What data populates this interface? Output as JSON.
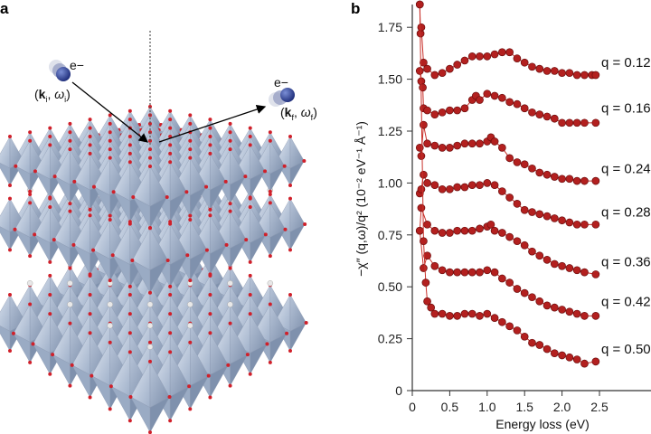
{
  "panel_a": {
    "label": "a",
    "incident": {
      "particle": "e−",
      "k": "k",
      "k_sub": "i",
      "w": "ω",
      "w_sub": "i"
    },
    "scattered": {
      "particle": "e−",
      "k": "k",
      "k_sub": "f",
      "w": "ω",
      "w_sub": "f"
    },
    "colors": {
      "octahedron": "#b9c6da",
      "oxygen": "#d0202a",
      "ion": "#e8e8e8",
      "electron": "#283a8c"
    }
  },
  "panel_b": {
    "label": "b"
  },
  "chart_data": {
    "type": "scatter",
    "xlabel": "Energy loss (eV)",
    "ylabel": "−χ″ (q,ω)/q² (10⁻² eV⁻¹ Å⁻¹)",
    "xlim": [
      0,
      2.5
    ],
    "ylim": [
      0,
      1.86
    ],
    "xticks": [
      "0",
      "0.5",
      "1.0",
      "1.5",
      "2.0",
      "2.5"
    ],
    "xtick_values": [
      0,
      0.5,
      1.0,
      1.5,
      2.0,
      2.5
    ],
    "yticks": [
      "0",
      "0.25",
      "0.50",
      "0.75",
      "1.00",
      "1.25",
      "1.50",
      "1.75"
    ],
    "ytick_values": [
      0,
      0.25,
      0.5,
      0.75,
      1.0,
      1.25,
      1.5,
      1.75
    ],
    "marker_color": "#b3201f",
    "line_color": "#c8302a",
    "series": [
      {
        "name": "q = 0.12",
        "label_y": 1.58,
        "points": [
          [
            0.1,
            1.86
          ],
          [
            0.11,
            1.72
          ],
          [
            0.12,
            1.75
          ],
          [
            0.15,
            1.58
          ],
          [
            0.2,
            1.55
          ],
          [
            0.3,
            1.52
          ],
          [
            0.4,
            1.53
          ],
          [
            0.5,
            1.55
          ],
          [
            0.6,
            1.57
          ],
          [
            0.7,
            1.59
          ],
          [
            0.8,
            1.61
          ],
          [
            0.9,
            1.61
          ],
          [
            1.0,
            1.61
          ],
          [
            1.1,
            1.62
          ],
          [
            1.2,
            1.63
          ],
          [
            1.3,
            1.63
          ],
          [
            1.4,
            1.6
          ],
          [
            1.5,
            1.58
          ],
          [
            1.6,
            1.56
          ],
          [
            1.7,
            1.55
          ],
          [
            1.8,
            1.54
          ],
          [
            1.9,
            1.54
          ],
          [
            2.0,
            1.53
          ],
          [
            2.1,
            1.53
          ],
          [
            2.2,
            1.52
          ],
          [
            2.3,
            1.52
          ],
          [
            2.4,
            1.52
          ],
          [
            2.45,
            1.52
          ]
        ]
      },
      {
        "name": "q = 0.16",
        "label_y": 1.36,
        "points": [
          [
            0.1,
            1.54
          ],
          [
            0.12,
            1.49
          ],
          [
            0.14,
            1.46
          ],
          [
            0.15,
            1.36
          ],
          [
            0.2,
            1.35
          ],
          [
            0.3,
            1.33
          ],
          [
            0.4,
            1.34
          ],
          [
            0.5,
            1.35
          ],
          [
            0.6,
            1.35
          ],
          [
            0.7,
            1.36
          ],
          [
            0.8,
            1.4
          ],
          [
            0.85,
            1.42
          ],
          [
            0.9,
            1.4
          ],
          [
            1.0,
            1.43
          ],
          [
            1.1,
            1.42
          ],
          [
            1.2,
            1.41
          ],
          [
            1.3,
            1.39
          ],
          [
            1.4,
            1.38
          ],
          [
            1.5,
            1.36
          ],
          [
            1.6,
            1.34
          ],
          [
            1.7,
            1.33
          ],
          [
            1.8,
            1.32
          ],
          [
            1.9,
            1.31
          ],
          [
            2.0,
            1.29
          ],
          [
            2.1,
            1.29
          ],
          [
            2.2,
            1.29
          ],
          [
            2.3,
            1.29
          ],
          [
            2.45,
            1.29
          ]
        ]
      },
      {
        "name": "q = 0.24",
        "label_y": 1.07,
        "points": [
          [
            0.1,
            1.17
          ],
          [
            0.12,
            1.13
          ],
          [
            0.15,
            1.28
          ],
          [
            0.2,
            1.19
          ],
          [
            0.3,
            1.18
          ],
          [
            0.4,
            1.17
          ],
          [
            0.5,
            1.17
          ],
          [
            0.6,
            1.18
          ],
          [
            0.7,
            1.19
          ],
          [
            0.8,
            1.19
          ],
          [
            0.9,
            1.19
          ],
          [
            1.0,
            1.2
          ],
          [
            1.05,
            1.22
          ],
          [
            1.1,
            1.2
          ],
          [
            1.2,
            1.17
          ],
          [
            1.3,
            1.12
          ],
          [
            1.4,
            1.1
          ],
          [
            1.5,
            1.09
          ],
          [
            1.6,
            1.07
          ],
          [
            1.7,
            1.05
          ],
          [
            1.8,
            1.04
          ],
          [
            1.9,
            1.03
          ],
          [
            2.0,
            1.02
          ],
          [
            2.1,
            1.02
          ],
          [
            2.2,
            1.01
          ],
          [
            2.3,
            1.01
          ],
          [
            2.45,
            1.01
          ]
        ]
      },
      {
        "name": "q = 0.28",
        "label_y": 0.86,
        "points": [
          [
            0.1,
            0.95
          ],
          [
            0.12,
            0.97
          ],
          [
            0.15,
            1.04
          ],
          [
            0.2,
            1.0
          ],
          [
            0.3,
            0.99
          ],
          [
            0.4,
            0.97
          ],
          [
            0.5,
            0.97
          ],
          [
            0.6,
            0.98
          ],
          [
            0.7,
            0.98
          ],
          [
            0.8,
            0.99
          ],
          [
            0.9,
            0.99
          ],
          [
            1.0,
            1.0
          ],
          [
            1.1,
            0.99
          ],
          [
            1.2,
            0.96
          ],
          [
            1.3,
            0.93
          ],
          [
            1.4,
            0.9
          ],
          [
            1.5,
            0.87
          ],
          [
            1.6,
            0.86
          ],
          [
            1.7,
            0.85
          ],
          [
            1.8,
            0.84
          ],
          [
            1.9,
            0.83
          ],
          [
            2.0,
            0.82
          ],
          [
            2.1,
            0.81
          ],
          [
            2.2,
            0.8
          ],
          [
            2.3,
            0.8
          ],
          [
            2.45,
            0.8
          ]
        ]
      },
      {
        "name": "q = 0.36",
        "label_y": 0.62,
        "points": [
          [
            0.1,
            0.77
          ],
          [
            0.12,
            0.88
          ],
          [
            0.2,
            0.8
          ],
          [
            0.3,
            0.77
          ],
          [
            0.4,
            0.76
          ],
          [
            0.5,
            0.76
          ],
          [
            0.6,
            0.77
          ],
          [
            0.7,
            0.77
          ],
          [
            0.8,
            0.77
          ],
          [
            0.9,
            0.78
          ],
          [
            1.0,
            0.79
          ],
          [
            1.05,
            0.8
          ],
          [
            1.1,
            0.77
          ],
          [
            1.2,
            0.76
          ],
          [
            1.3,
            0.74
          ],
          [
            1.4,
            0.72
          ],
          [
            1.5,
            0.7
          ],
          [
            1.6,
            0.67
          ],
          [
            1.7,
            0.65
          ],
          [
            1.8,
            0.63
          ],
          [
            1.9,
            0.61
          ],
          [
            2.0,
            0.6
          ],
          [
            2.1,
            0.59
          ],
          [
            2.2,
            0.58
          ],
          [
            2.3,
            0.57
          ],
          [
            2.45,
            0.56
          ]
        ]
      },
      {
        "name": "q = 0.42",
        "label_y": 0.43,
        "points": [
          [
            0.1,
            0.77
          ],
          [
            0.15,
            0.59
          ],
          [
            0.2,
            0.65
          ],
          [
            0.3,
            0.6
          ],
          [
            0.4,
            0.58
          ],
          [
            0.5,
            0.57
          ],
          [
            0.6,
            0.57
          ],
          [
            0.7,
            0.57
          ],
          [
            0.8,
            0.57
          ],
          [
            0.9,
            0.57
          ],
          [
            1.0,
            0.58
          ],
          [
            1.1,
            0.57
          ],
          [
            1.2,
            0.54
          ],
          [
            1.3,
            0.52
          ],
          [
            1.4,
            0.49
          ],
          [
            1.5,
            0.47
          ],
          [
            1.6,
            0.45
          ],
          [
            1.7,
            0.43
          ],
          [
            1.8,
            0.41
          ],
          [
            1.9,
            0.4
          ],
          [
            2.0,
            0.39
          ],
          [
            2.1,
            0.38
          ],
          [
            2.2,
            0.37
          ],
          [
            2.3,
            0.36
          ],
          [
            2.45,
            0.36
          ]
        ]
      },
      {
        "name": "q = 0.50",
        "label_y": 0.2,
        "points": [
          [
            0.1,
            1.86
          ],
          [
            0.15,
            0.72
          ],
          [
            0.18,
            0.52
          ],
          [
            0.2,
            0.43
          ],
          [
            0.25,
            0.4
          ],
          [
            0.3,
            0.37
          ],
          [
            0.4,
            0.37
          ],
          [
            0.5,
            0.36
          ],
          [
            0.6,
            0.36
          ],
          [
            0.7,
            0.37
          ],
          [
            0.8,
            0.37
          ],
          [
            0.9,
            0.36
          ],
          [
            1.0,
            0.37
          ],
          [
            1.1,
            0.35
          ],
          [
            1.2,
            0.33
          ],
          [
            1.3,
            0.31
          ],
          [
            1.4,
            0.29
          ],
          [
            1.5,
            0.26
          ],
          [
            1.6,
            0.23
          ],
          [
            1.7,
            0.22
          ],
          [
            1.8,
            0.2
          ],
          [
            1.9,
            0.18
          ],
          [
            2.0,
            0.17
          ],
          [
            2.1,
            0.16
          ],
          [
            2.2,
            0.15
          ],
          [
            2.3,
            0.13
          ],
          [
            2.45,
            0.14
          ]
        ]
      }
    ]
  }
}
